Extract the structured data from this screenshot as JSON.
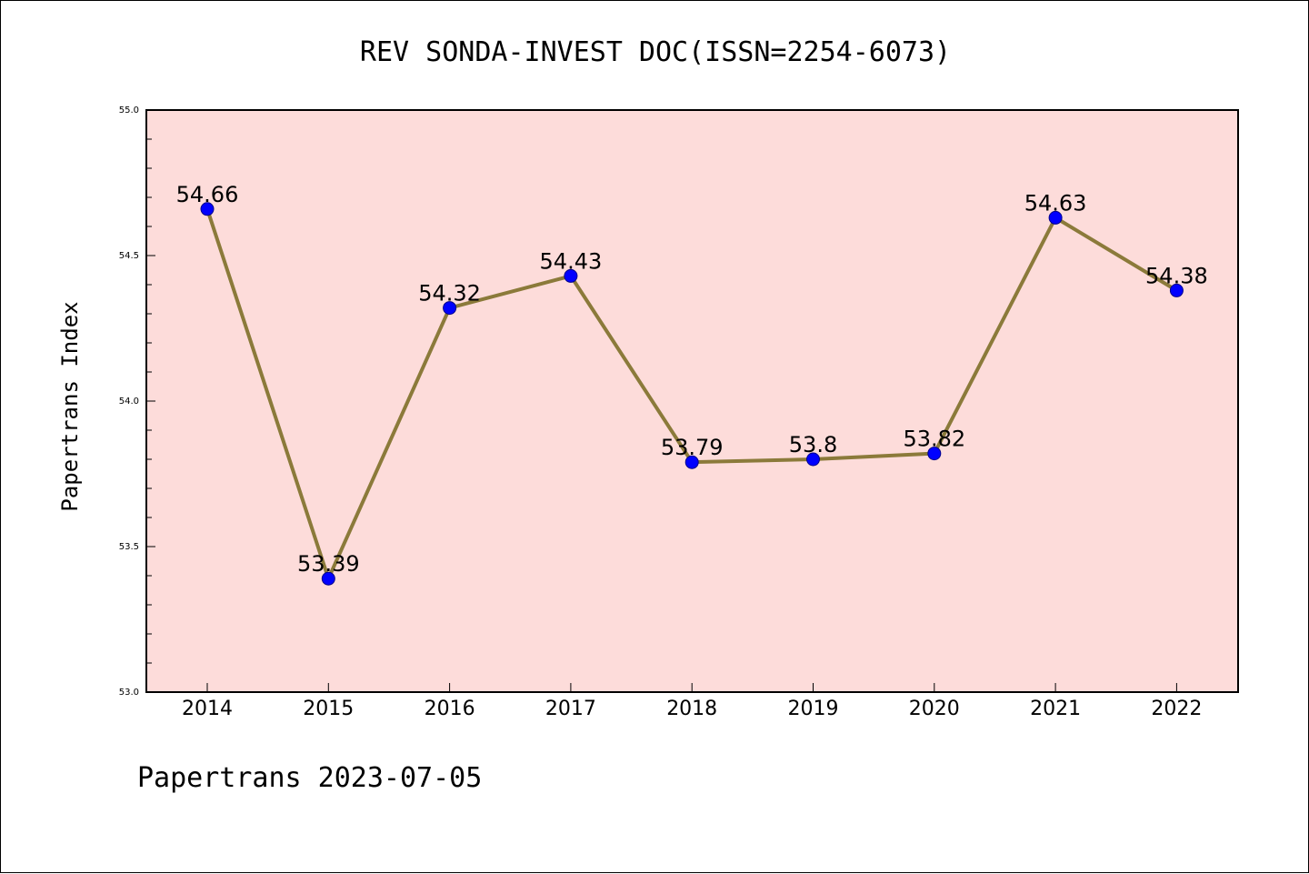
{
  "chart_data": {
    "type": "line",
    "title": "REV SONDA-INVEST DOC(ISSN=2254-6073)",
    "xlabel": "",
    "ylabel": "Papertrans Index",
    "footer": "Papertrans 2023-07-05",
    "categories": [
      "2014",
      "2015",
      "2016",
      "2017",
      "2018",
      "2019",
      "2020",
      "2021",
      "2022"
    ],
    "series": [
      {
        "values": [
          54.66,
          53.39,
          54.32,
          54.43,
          53.79,
          53.8,
          53.82,
          54.63,
          54.38
        ],
        "labels": [
          "54.66",
          "53.39",
          "54.32",
          "54.43",
          "53.79",
          "53.8",
          "53.82",
          "54.63",
          "54.38"
        ],
        "line_color": "#8b7a3a",
        "marker_color": "#0000ff"
      }
    ],
    "ylim": [
      53.0,
      55.0
    ],
    "yticks": [
      "53.0",
      "53.5",
      "54.0",
      "54.5",
      "55.0"
    ],
    "plot_background": "#fddcda",
    "grid": false,
    "legend": "none"
  }
}
